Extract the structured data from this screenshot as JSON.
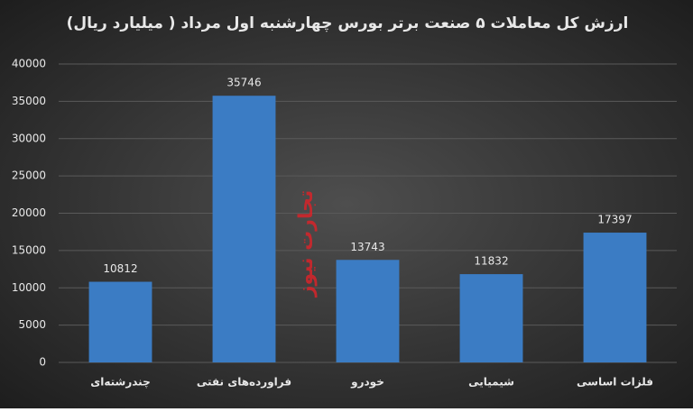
{
  "chart_data": {
    "type": "bar",
    "title": "ارزش کل معاملات ۵ صنعت برتر بورس چهارشنبه اول مرداد ( میلیارد ریال)",
    "watermark": "تجارت نیوز",
    "categories": [
      "چندرشته‌ای",
      "فراورده‌های نفتی",
      "خودرو",
      "شیمیایی",
      "فلزات اساسی"
    ],
    "values": [
      10812,
      35746,
      13743,
      11832,
      17397
    ],
    "color": "#3b7cc4",
    "ylim": [
      0,
      40000
    ],
    "yticks": [
      0,
      5000,
      10000,
      15000,
      20000,
      25000,
      30000,
      35000,
      40000
    ],
    "grid": true
  }
}
